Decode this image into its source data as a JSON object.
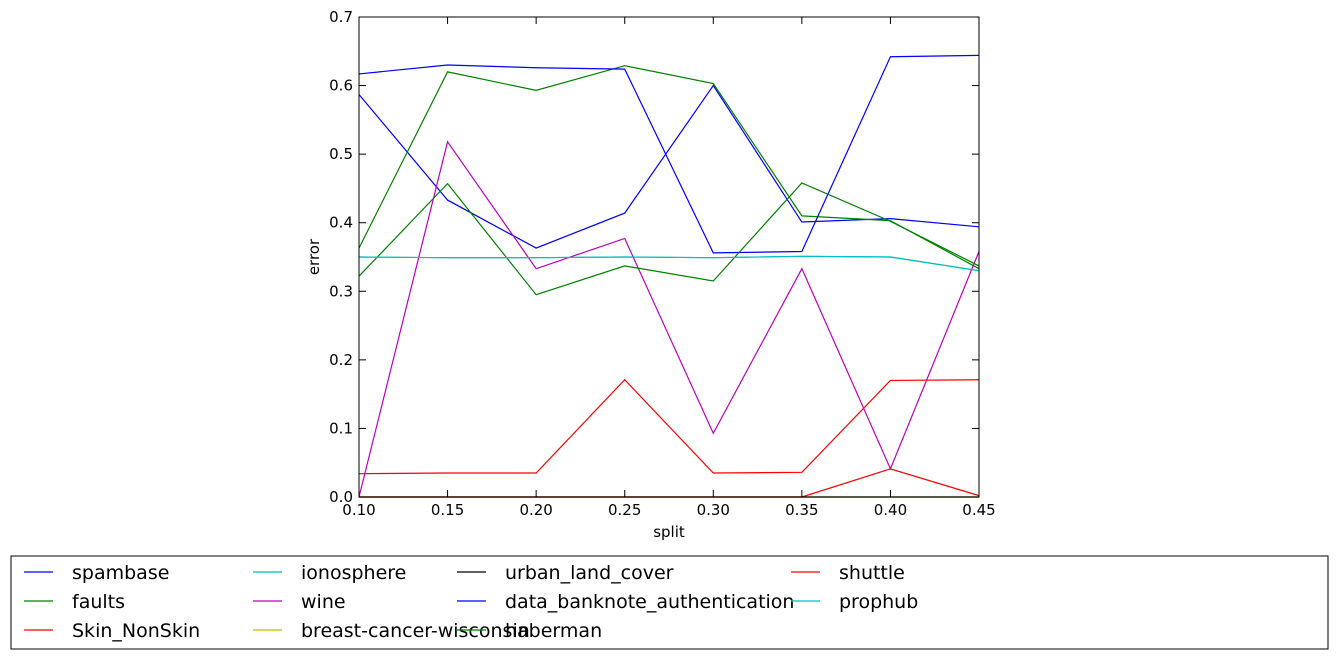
{
  "chart_data": {
    "type": "line",
    "title": "",
    "xlabel": "split",
    "ylabel": "error",
    "xlim": [
      0.1,
      0.45
    ],
    "ylim": [
      0.0,
      0.7
    ],
    "x_ticks": [
      "0.10",
      "0.15",
      "0.20",
      "0.25",
      "0.30",
      "0.35",
      "0.40",
      "0.45"
    ],
    "y_ticks": [
      "0.0",
      "0.1",
      "0.2",
      "0.3",
      "0.4",
      "0.5",
      "0.6",
      "0.7"
    ],
    "x": [
      0.1,
      0.15,
      0.2,
      0.25,
      0.3,
      0.35,
      0.4,
      0.45
    ],
    "grid": false,
    "legend_position": "bottom",
    "series": [
      {
        "name": "spambase",
        "color": "#0000ff",
        "values": [
          0.587,
          0.433,
          0.363,
          0.414,
          0.6,
          0.401,
          0.406,
          0.394
        ]
      },
      {
        "name": "faults",
        "color": "#008000",
        "values": [
          0.363,
          0.62,
          0.593,
          0.629,
          0.603,
          0.41,
          0.403,
          0.333
        ]
      },
      {
        "name": "Skin_NonSkin",
        "color": "#ff0000",
        "values": [
          0.034,
          0.035,
          0.035,
          0.171,
          0.035,
          0.036,
          0.17,
          0.171
        ]
      },
      {
        "name": "ionosphere",
        "color": "#00bfbf",
        "values": [
          0.35,
          0.349,
          0.349,
          0.35,
          0.349,
          0.351,
          0.35,
          0.33
        ]
      },
      {
        "name": "wine",
        "color": "#bf00bf",
        "values": [
          0.0,
          0.518,
          0.333,
          0.377,
          0.093,
          0.333,
          0.041,
          0.358
        ]
      },
      {
        "name": "breast-cancer-wisconsin",
        "color": "#bfbf00",
        "values": [
          0.0,
          0.0,
          0.0,
          0.0,
          0.0,
          0.0,
          0.0,
          0.0
        ]
      },
      {
        "name": "urban_land_cover",
        "color": "#000000",
        "values": [
          0.0,
          0.0,
          0.0,
          0.0,
          0.0,
          0.0,
          0.0,
          0.0
        ]
      },
      {
        "name": "data_banknote_authentication",
        "color": "#0000ff",
        "values": [
          0.617,
          0.63,
          0.626,
          0.624,
          0.356,
          0.358,
          0.642,
          0.644
        ]
      },
      {
        "name": "haberman",
        "color": "#008000",
        "values": [
          0.322,
          0.457,
          0.295,
          0.337,
          0.315,
          0.458,
          0.402,
          0.337
        ]
      },
      {
        "name": "shuttle",
        "color": "#ff0000",
        "values": [
          0.0,
          0.0,
          0.0,
          0.0,
          0.0,
          0.0,
          0.041,
          0.002
        ]
      },
      {
        "name": "prophub",
        "color": "#00bfbf",
        "values": [
          0.35,
          0.349,
          0.349,
          0.35,
          0.349,
          0.351,
          0.35,
          0.33
        ]
      }
    ]
  }
}
